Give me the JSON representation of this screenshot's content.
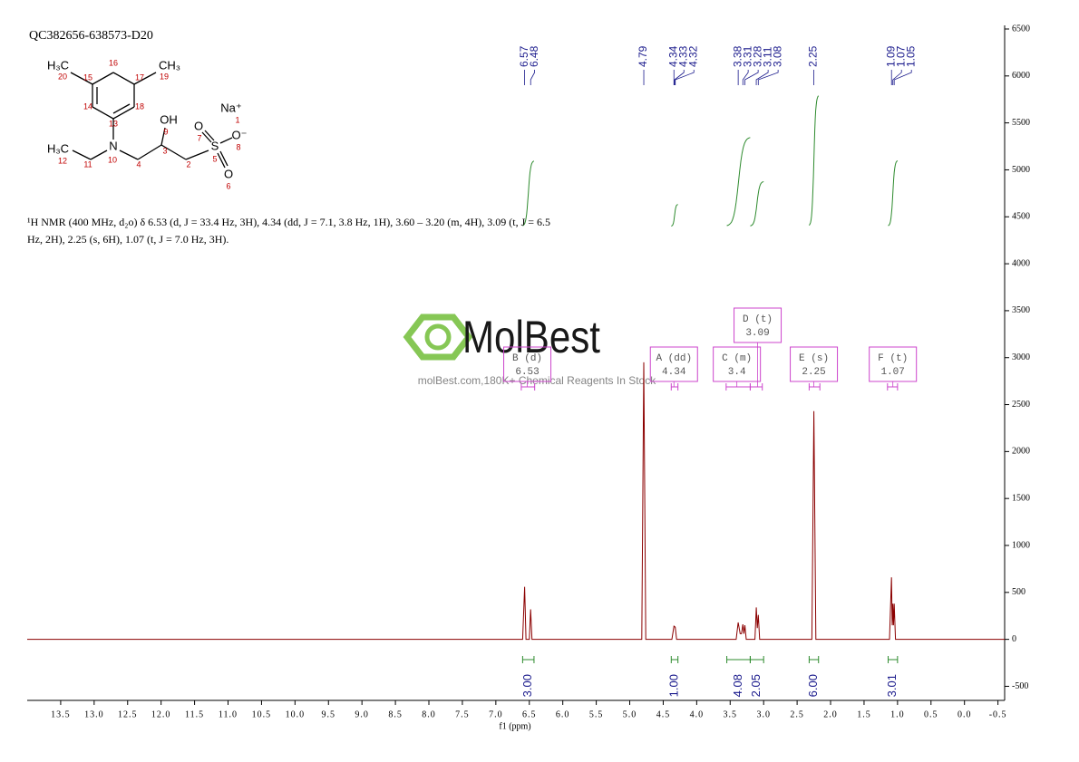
{
  "sample_id": "QC382656-638573-D20",
  "structure": {
    "labels": [
      "H₃C",
      "20",
      "16",
      "15",
      "17",
      "CH₃",
      "19",
      "14",
      "18",
      "13",
      "OH",
      "9",
      "Na⁺",
      "1",
      "N",
      "10",
      "3",
      "O",
      "7",
      "S",
      "5",
      "O⁻",
      "8",
      "O",
      "6",
      "H₃C",
      "12",
      "11",
      "4",
      "2"
    ]
  },
  "nmr_text": "¹H NMR (400 MHz, d₂o) δ 6.53 (d, J = 33.4 Hz, 3H), 4.34 (dd, J = 7.1, 3.8 Hz, 1H), 3.60 – 3.20 (m, 4H), 3.09 (t, J = 6.5 Hz, 2H), 2.25 (s, 6H), 1.07 (t, J = 7.0 Hz, 3H).",
  "watermark": {
    "logo": "MolBest",
    "tagline": "molBest.com,180K+ Chemical Reagents In Stock"
  },
  "chart_data": {
    "type": "nmr",
    "x_label": "f1 (ppm)",
    "xlim": [
      14.0,
      -0.6
    ],
    "xticks": [
      13.5,
      {
        "value": 13,
        "label": "13.0"
      },
      12.5,
      {
        "value": 12,
        "label": "12.0"
      },
      11.5,
      {
        "value": 11,
        "label": "11.0"
      },
      10.5,
      {
        "value": 10,
        "label": "10.0"
      },
      9.5,
      {
        "value": 9,
        "label": "9.0"
      },
      8.5,
      {
        "value": 8,
        "label": "8.0"
      },
      7.5,
      {
        "value": 7,
        "label": "7.0"
      },
      6.5,
      {
        "value": 6,
        "label": "6.0"
      },
      5.5,
      {
        "value": 5,
        "label": "5.0"
      },
      4.5,
      {
        "value": 4,
        "label": "4.0"
      },
      3.5,
      {
        "value": 3,
        "label": "3.0"
      },
      2.5,
      {
        "value": 2,
        "label": "2.0"
      },
      1.5,
      {
        "value": 1,
        "label": "1.0"
      },
      0.5,
      {
        "value": 0,
        "label": "0.0"
      },
      -0.5
    ],
    "ylim": [
      -650,
      6500
    ],
    "yticks": [
      -500,
      0,
      500,
      1000,
      1500,
      2000,
      2500,
      3000,
      3500,
      4000,
      4500,
      5000,
      5500,
      6000,
      6500
    ],
    "color": "#8b0000",
    "x": [
      14.0,
      6.6,
      6.57,
      6.55,
      6.5,
      6.48,
      6.46,
      4.82,
      4.79,
      4.76,
      4.37,
      4.34,
      4.32,
      4.3,
      3.41,
      3.38,
      3.35,
      3.33,
      3.31,
      3.295,
      3.28,
      3.26,
      3.13,
      3.11,
      3.095,
      3.08,
      3.06,
      2.28,
      2.25,
      2.22,
      1.12,
      1.09,
      1.08,
      1.07,
      1.06,
      1.05,
      1.03,
      -0.6
    ],
    "values": [
      0,
      0,
      560,
      0,
      0,
      320,
      0,
      0,
      2950,
      0,
      0,
      140,
      130,
      0,
      0,
      180,
      60,
      60,
      160,
      60,
      150,
      0,
      0,
      340,
      120,
      260,
      0,
      0,
      2430,
      0,
      0,
      660,
      150,
      380,
      150,
      380,
      0,
      0
    ],
    "peak_labels": [
      6.57,
      6.48,
      4.79,
      4.34,
      4.33,
      4.32,
      3.38,
      3.31,
      3.28,
      3.11,
      3.08,
      2.25,
      1.09,
      1.07,
      1.05
    ],
    "peak_label_color": "#1a1a8c",
    "multiplets": [
      {
        "label": "B (d)",
        "shift": 6.53,
        "range": [
          6.62,
          6.42
        ]
      },
      {
        "label": "A (dd)",
        "shift": 4.34,
        "range": [
          4.38,
          4.28
        ]
      },
      {
        "label": "C (m)",
        "shift": 3.4,
        "range": [
          3.56,
          3.2
        ]
      },
      {
        "label": "D (t)",
        "shift": 3.09,
        "range": [
          3.2,
          3.02
        ]
      },
      {
        "label": "E (s)",
        "shift": 2.25,
        "range": [
          2.32,
          2.16
        ]
      },
      {
        "label": "F (t)",
        "shift": 1.07,
        "range": [
          1.15,
          1.0
        ]
      }
    ],
    "multiplet_color": "#cc44cc",
    "integrals": {
      "ranges": [
        [
          6.6,
          6.43
        ],
        [
          4.38,
          4.28
        ],
        [
          3.55,
          3.2
        ],
        [
          3.2,
          3.0
        ],
        [
          2.32,
          2.18
        ],
        [
          1.14,
          1.0
        ]
      ],
      "values": [
        3.0,
        1.0,
        4.08,
        2.05,
        6.0,
        3.01
      ],
      "value_labels": [
        "3.00",
        "1.00",
        "4.08",
        "2.05",
        "6.00",
        "3.01"
      ],
      "color": "#2e8b2e"
    }
  }
}
